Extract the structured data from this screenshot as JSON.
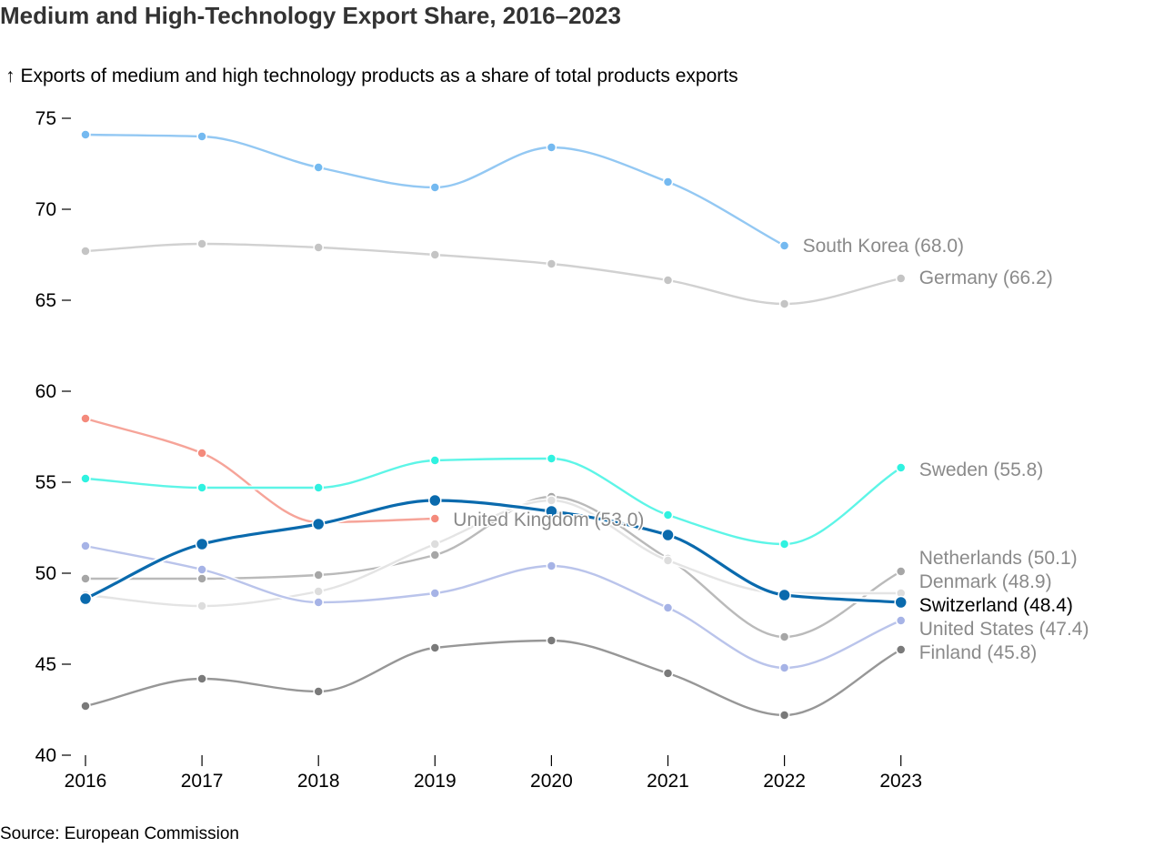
{
  "header": {
    "title": "Medium and High-Technology Export Share, 2016–2023",
    "subtitle_arrow": "↑",
    "subtitle": "Exports of medium and high technology products as a share of total products exports"
  },
  "footer": {
    "source": "Source: European Commission"
  },
  "chart_data": {
    "type": "line",
    "title": "Medium and High-Technology Export Share, 2016–2023",
    "ylabel": "Exports of medium and high technology products as a share of total products exports",
    "x": [
      2016,
      2017,
      2018,
      2019,
      2020,
      2021,
      2022,
      2023
    ],
    "ylim": [
      40,
      75
    ],
    "yticks": [
      40,
      45,
      50,
      55,
      60,
      65,
      70,
      75
    ],
    "grid": false,
    "highlight": "Switzerland",
    "series": [
      {
        "name": "South Korea",
        "label": "South Korea (68.0)",
        "color": "#74b9f0",
        "values": [
          74.1,
          74.0,
          72.3,
          71.2,
          73.4,
          71.5,
          68.0,
          null
        ]
      },
      {
        "name": "Germany",
        "label": "Germany (66.2)",
        "color": "#c4c4c4",
        "values": [
          67.7,
          68.1,
          67.9,
          67.5,
          67.0,
          66.1,
          64.8,
          66.2
        ]
      },
      {
        "name": "United Kingdom",
        "label": "United Kingdom (53.0)",
        "color": "#f48a7c",
        "values": [
          58.5,
          56.6,
          52.8,
          53.0,
          null,
          null,
          null,
          null
        ]
      },
      {
        "name": "Sweden",
        "label": "Sweden (55.8)",
        "color": "#2ff2e0",
        "values": [
          55.2,
          54.7,
          54.7,
          56.2,
          56.3,
          53.2,
          51.6,
          55.8
        ]
      },
      {
        "name": "Netherlands",
        "label": "Netherlands (50.1)",
        "color": "#a6a6a6",
        "values": [
          49.7,
          49.7,
          49.9,
          51.0,
          54.2,
          50.8,
          46.5,
          50.1
        ]
      },
      {
        "name": "Denmark",
        "label": "Denmark (48.9)",
        "color": "#dddddd",
        "values": [
          48.8,
          48.2,
          49.0,
          51.6,
          54.0,
          50.7,
          48.9,
          48.9
        ]
      },
      {
        "name": "Switzerland",
        "label": "Switzerland (48.4)",
        "color": "#0a6aad",
        "values": [
          48.6,
          51.6,
          52.7,
          54.0,
          53.4,
          52.1,
          48.8,
          48.4
        ]
      },
      {
        "name": "United States",
        "label": "United States (47.4)",
        "color": "#a6b3e6",
        "values": [
          51.5,
          50.2,
          48.4,
          48.9,
          50.4,
          48.1,
          44.8,
          47.4
        ]
      },
      {
        "name": "Finland",
        "label": "Finland (45.8)",
        "color": "#7a7a7a",
        "values": [
          42.7,
          44.2,
          43.5,
          45.9,
          46.3,
          44.5,
          42.2,
          45.8
        ]
      }
    ]
  }
}
